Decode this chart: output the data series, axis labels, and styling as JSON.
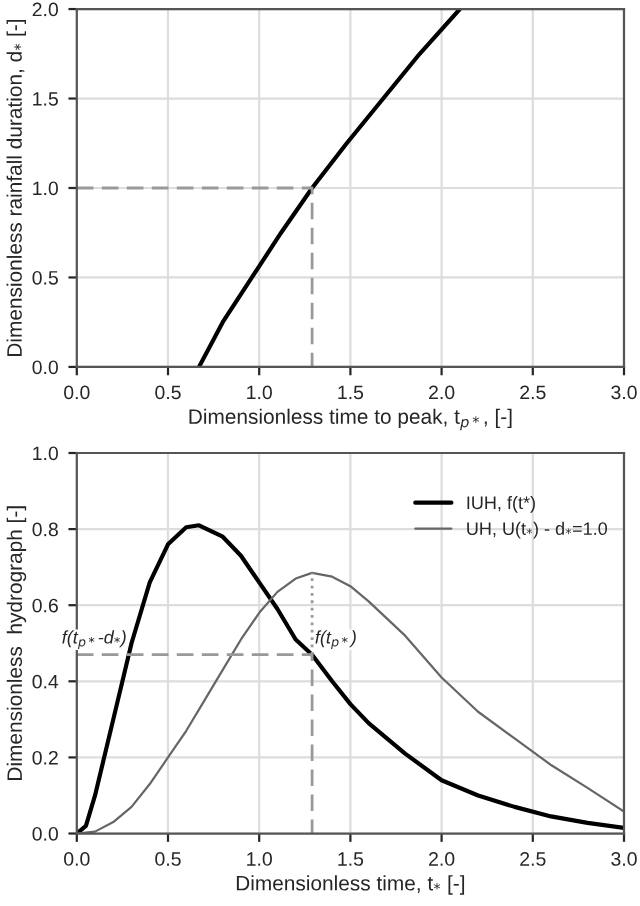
{
  "chart_data": [
    {
      "type": "line",
      "xlabel": "Dimensionless time to peak, t$_{p*}$, [-]",
      "ylabel": "Dimensionless rainfall duration, d$_{*}$ [-]",
      "xlim": [
        0,
        3
      ],
      "ylim": [
        0,
        2
      ],
      "xticks": [
        {
          "value": 0,
          "label": "0.0"
        },
        {
          "value": 0.5,
          "label": "0.5"
        },
        {
          "value": 1,
          "label": "1.0"
        },
        {
          "value": 1.5,
          "label": "1.5"
        },
        {
          "value": 2,
          "label": "2.0"
        },
        {
          "value": 2.5,
          "label": "2.5"
        },
        {
          "value": 3,
          "label": "3.0"
        }
      ],
      "yticks": [
        {
          "value": 0,
          "label": "0.0"
        },
        {
          "value": 0.5,
          "label": "0.5"
        },
        {
          "value": 1,
          "label": "1.0"
        },
        {
          "value": 1.5,
          "label": "1.5"
        },
        {
          "value": 2,
          "label": "2.0"
        }
      ],
      "grid": true,
      "legend": false,
      "series": [
        {
          "color": "#000000",
          "x": [
            0.67,
            0.8,
            0.96,
            1.12,
            1.29,
            1.48,
            1.68,
            1.88,
            2.1
          ],
          "values": [
            0,
            0.25,
            0.5,
            0.75,
            1.0,
            1.25,
            1.5,
            1.75,
            2.0
          ]
        },
        {
          "color": "#999999",
          "line_style": "dashed",
          "x": [
            0,
            1.29,
            1.29
          ],
          "values": [
            1.0,
            1.0,
            0
          ]
        }
      ]
    },
    {
      "type": "line",
      "xlabel": "Dimensionless time, t$_{*}$ [-]",
      "ylabel": "Dimensionless  hydrograph [-]",
      "xlim": [
        0,
        3
      ],
      "ylim": [
        0,
        1
      ],
      "xticks": [
        {
          "value": 0,
          "label": "0.0"
        },
        {
          "value": 0.5,
          "label": "0.5"
        },
        {
          "value": 1,
          "label": "1.0"
        },
        {
          "value": 1.5,
          "label": "1.5"
        },
        {
          "value": 2,
          "label": "2.0"
        },
        {
          "value": 2.5,
          "label": "2.5"
        },
        {
          "value": 3,
          "label": "3.0"
        }
      ],
      "yticks": [
        {
          "value": 0,
          "label": "0.0"
        },
        {
          "value": 0.2,
          "label": "0.2"
        },
        {
          "value": 0.4,
          "label": "0.4"
        },
        {
          "value": 0.6,
          "label": "0.6"
        },
        {
          "value": 0.8,
          "label": "0.8"
        },
        {
          "value": 1,
          "label": "1.0"
        }
      ],
      "grid": true,
      "legend": "top right",
      "annotations": [
        {
          "text": "f(t$_{p*}$-d$_{*}$)",
          "x": 0.29,
          "y": 0.47
        },
        {
          "text": "f(t$_{p*}$)",
          "x": 1.29,
          "y": 0.47
        }
      ],
      "series": [
        {
          "name": "IUH, f(t*)",
          "color": "#000000",
          "x": [
            0,
            0.05,
            0.1,
            0.2,
            0.3,
            0.4,
            0.5,
            0.6,
            0.67,
            0.8,
            0.9,
            1.0,
            1.1,
            1.2,
            1.29,
            1.4,
            1.5,
            1.6,
            1.8,
            2.0,
            2.2,
            2.4,
            2.6,
            2.8,
            3.0
          ],
          "values": [
            0,
            0.02,
            0.1,
            0.3,
            0.5,
            0.66,
            0.76,
            0.805,
            0.81,
            0.78,
            0.73,
            0.66,
            0.59,
            0.51,
            0.47,
            0.4,
            0.34,
            0.29,
            0.21,
            0.14,
            0.1,
            0.07,
            0.045,
            0.028,
            0.015
          ]
        },
        {
          "name": "UH, U(t$_{*}$) - d$_{*}$=1.0",
          "color": "#666666",
          "x": [
            0,
            0.1,
            0.2,
            0.3,
            0.4,
            0.5,
            0.6,
            0.7,
            0.8,
            0.9,
            1.0,
            1.1,
            1.2,
            1.29,
            1.4,
            1.5,
            1.6,
            1.8,
            2.0,
            2.2,
            2.4,
            2.6,
            2.8,
            3.0
          ],
          "values": [
            0,
            0.005,
            0.03,
            0.07,
            0.13,
            0.2,
            0.27,
            0.35,
            0.43,
            0.51,
            0.58,
            0.635,
            0.67,
            0.685,
            0.675,
            0.65,
            0.61,
            0.52,
            0.41,
            0.32,
            0.25,
            0.18,
            0.12,
            0.058
          ]
        },
        {
          "color": "#999999",
          "line_style": "dashed",
          "x": [
            0,
            1.29,
            1.29
          ],
          "values": [
            0.47,
            0.47,
            0
          ]
        },
        {
          "color": "#999999",
          "line_style": "dotted",
          "x": [
            1.29,
            1.29
          ],
          "values": [
            0.47,
            0.685
          ]
        }
      ]
    }
  ]
}
